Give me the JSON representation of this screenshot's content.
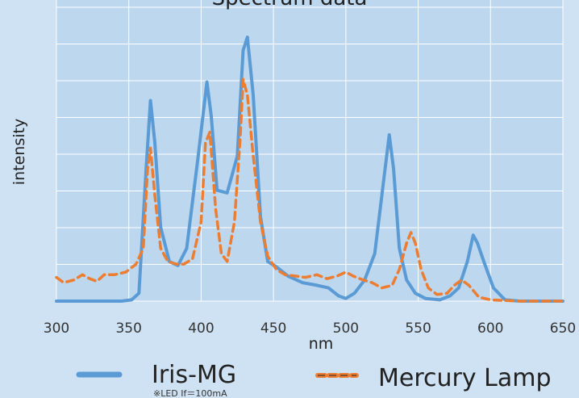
{
  "chart_data": {
    "type": "line",
    "title": "Spectrum data",
    "xlabel": "nm",
    "ylabel": "intensity",
    "xlim": [
      300,
      650
    ],
    "ylim": [
      0,
      1
    ],
    "x_ticks": [
      "300",
      "350",
      "400",
      "450",
      "500",
      "550",
      "600",
      "650"
    ],
    "grid": true,
    "legend_position": "bottom",
    "series": [
      {
        "name": "Iris-MG",
        "note": "※LED If＝100mA",
        "color": "#5b9bd5",
        "style": "solid",
        "points": [
          [
            300,
            0
          ],
          [
            345,
            0
          ],
          [
            352,
            0.005
          ],
          [
            357,
            0.03
          ],
          [
            362,
            0.5
          ],
          [
            365,
            0.76
          ],
          [
            368,
            0.6
          ],
          [
            372,
            0.28
          ],
          [
            378,
            0.15
          ],
          [
            384,
            0.135
          ],
          [
            390,
            0.2
          ],
          [
            398,
            0.55
          ],
          [
            404,
            0.83
          ],
          [
            407,
            0.7
          ],
          [
            411,
            0.42
          ],
          [
            418,
            0.41
          ],
          [
            425,
            0.55
          ],
          [
            429,
            0.95
          ],
          [
            432,
            1.0
          ],
          [
            436,
            0.78
          ],
          [
            441,
            0.32
          ],
          [
            446,
            0.15
          ],
          [
            452,
            0.13
          ],
          [
            460,
            0.095
          ],
          [
            470,
            0.07
          ],
          [
            480,
            0.06
          ],
          [
            488,
            0.05
          ],
          [
            495,
            0.02
          ],
          [
            500,
            0.01
          ],
          [
            506,
            0.03
          ],
          [
            513,
            0.08
          ],
          [
            520,
            0.18
          ],
          [
            526,
            0.45
          ],
          [
            530,
            0.63
          ],
          [
            533,
            0.5
          ],
          [
            537,
            0.2
          ],
          [
            542,
            0.08
          ],
          [
            548,
            0.03
          ],
          [
            555,
            0.01
          ],
          [
            565,
            0.005
          ],
          [
            572,
            0.02
          ],
          [
            578,
            0.05
          ],
          [
            584,
            0.15
          ],
          [
            588,
            0.25
          ],
          [
            591,
            0.22
          ],
          [
            596,
            0.14
          ],
          [
            602,
            0.05
          ],
          [
            610,
            0.005
          ],
          [
            620,
            0
          ],
          [
            650,
            0
          ]
        ]
      },
      {
        "name": "Mercury Lamp",
        "color": "#ed7d31",
        "style": "dashed",
        "points": [
          [
            300,
            0.09
          ],
          [
            305,
            0.07
          ],
          [
            312,
            0.08
          ],
          [
            318,
            0.1
          ],
          [
            323,
            0.085
          ],
          [
            328,
            0.075
          ],
          [
            333,
            0.1
          ],
          [
            340,
            0.1
          ],
          [
            348,
            0.11
          ],
          [
            355,
            0.14
          ],
          [
            360,
            0.2
          ],
          [
            363,
            0.5
          ],
          [
            365,
            0.58
          ],
          [
            368,
            0.4
          ],
          [
            372,
            0.2
          ],
          [
            377,
            0.15
          ],
          [
            383,
            0.14
          ],
          [
            388,
            0.14
          ],
          [
            394,
            0.16
          ],
          [
            400,
            0.3
          ],
          [
            403,
            0.6
          ],
          [
            406,
            0.64
          ],
          [
            410,
            0.35
          ],
          [
            414,
            0.18
          ],
          [
            418,
            0.15
          ],
          [
            423,
            0.3
          ],
          [
            427,
            0.62
          ],
          [
            429,
            0.84
          ],
          [
            432,
            0.78
          ],
          [
            436,
            0.55
          ],
          [
            441,
            0.3
          ],
          [
            446,
            0.17
          ],
          [
            452,
            0.12
          ],
          [
            458,
            0.1
          ],
          [
            465,
            0.095
          ],
          [
            472,
            0.09
          ],
          [
            480,
            0.1
          ],
          [
            487,
            0.085
          ],
          [
            494,
            0.095
          ],
          [
            500,
            0.11
          ],
          [
            505,
            0.095
          ],
          [
            512,
            0.08
          ],
          [
            518,
            0.07
          ],
          [
            525,
            0.05
          ],
          [
            532,
            0.06
          ],
          [
            537,
            0.12
          ],
          [
            542,
            0.22
          ],
          [
            545,
            0.26
          ],
          [
            548,
            0.22
          ],
          [
            552,
            0.12
          ],
          [
            557,
            0.05
          ],
          [
            563,
            0.025
          ],
          [
            570,
            0.03
          ],
          [
            575,
            0.06
          ],
          [
            580,
            0.08
          ],
          [
            585,
            0.06
          ],
          [
            592,
            0.015
          ],
          [
            600,
            0.005
          ],
          [
            620,
            0
          ],
          [
            650,
            0
          ]
        ]
      }
    ]
  }
}
